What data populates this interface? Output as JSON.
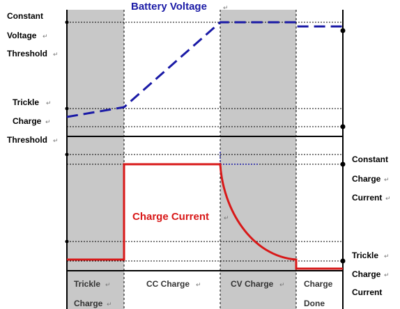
{
  "colors": {
    "voltage": "#1a1aa6",
    "current": "#d81818",
    "shade": "#c8c8c8"
  },
  "voltage_title": "Battery Voltage",
  "current_title": "Charge Current",
  "left_labels": {
    "constant": "Constant",
    "voltage": "Voltage",
    "threshold_top": "Threshold",
    "trickle": "Trickle",
    "charge": "Charge",
    "threshold_bottom": "Threshold"
  },
  "right_labels": {
    "constant": "Constant",
    "charge_top": "Charge",
    "current_top": "Current",
    "trickle": "Trickle",
    "charge_bottom": "Charge",
    "current_bottom": "Current"
  },
  "phases": {
    "trickle": "Trickle",
    "trickle_charge": "Charge",
    "cc": "CC Charge",
    "cv": "CV Charge",
    "done_top": "Charge",
    "done_bottom": "Done"
  },
  "return_mark": "↵"
}
